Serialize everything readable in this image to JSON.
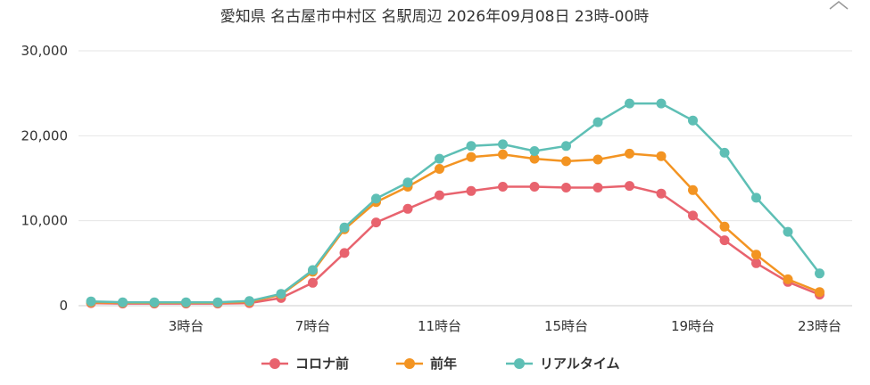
{
  "chart_data": {
    "type": "line",
    "title": "愛知県 名古屋市中村区 名駅周辺 2026年09月08日 23時-00時",
    "x": [
      0,
      1,
      2,
      3,
      4,
      5,
      6,
      7,
      8,
      9,
      10,
      11,
      12,
      13,
      14,
      15,
      16,
      17,
      18,
      19,
      20,
      21,
      22,
      23
    ],
    "xtick_labels": [
      {
        "x": 3,
        "label": "3時台"
      },
      {
        "x": 7,
        "label": "7時台"
      },
      {
        "x": 11,
        "label": "11時台"
      },
      {
        "x": 15,
        "label": "15時台"
      },
      {
        "x": 19,
        "label": "19時台"
      },
      {
        "x": 23,
        "label": "23時台"
      }
    ],
    "ylim": [
      0,
      30000
    ],
    "yticks": [
      {
        "value": 0,
        "label": "0"
      },
      {
        "value": 10000,
        "label": "10,000"
      },
      {
        "value": 20000,
        "label": "20,000"
      },
      {
        "value": 30000,
        "label": "30,000"
      }
    ],
    "grid": true,
    "legend_position": "bottom",
    "series": [
      {
        "name": "コロナ前",
        "color": "#e8636e",
        "values": [
          300,
          250,
          250,
          250,
          250,
          300,
          900,
          2700,
          6200,
          9800,
          11400,
          13000,
          13500,
          14000,
          14000,
          13900,
          13900,
          14100,
          13200,
          10600,
          7700,
          5000,
          2800,
          1300
        ]
      },
      {
        "name": "前年",
        "color": "#f39422",
        "values": [
          400,
          350,
          350,
          350,
          350,
          450,
          1300,
          4000,
          9000,
          12200,
          14000,
          16100,
          17500,
          17800,
          17300,
          17000,
          17200,
          17900,
          17600,
          13600,
          9300,
          6000,
          3100,
          1600
        ]
      },
      {
        "name": "リアルタイム",
        "color": "#5ebfb5",
        "values": [
          500,
          400,
          400,
          400,
          400,
          550,
          1400,
          4200,
          9200,
          12600,
          14500,
          17300,
          18800,
          19000,
          18200,
          18800,
          21600,
          23800,
          23800,
          21800,
          18000,
          12700,
          8700,
          3800
        ]
      }
    ]
  }
}
